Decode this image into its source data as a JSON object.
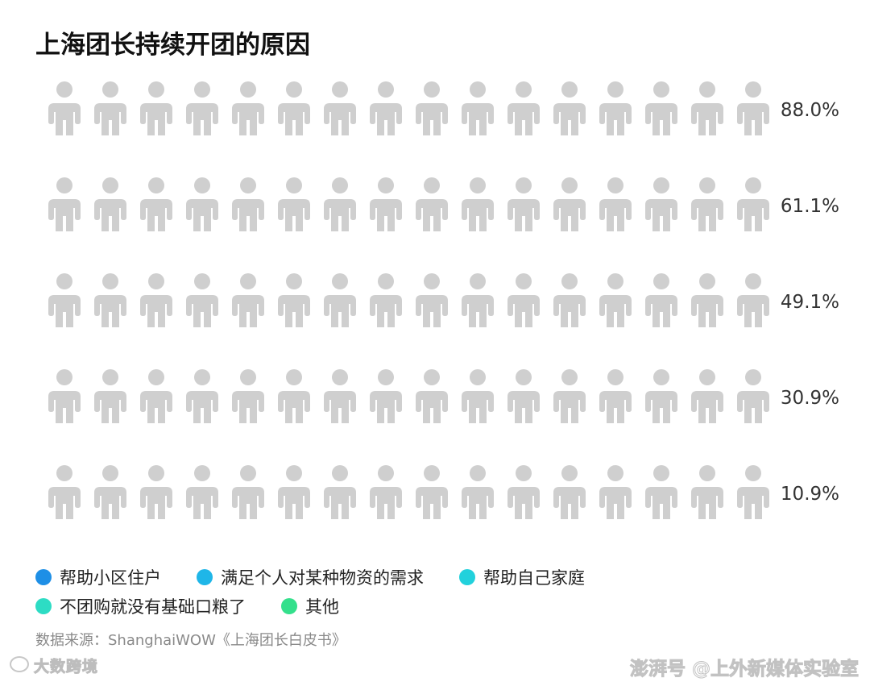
{
  "chart_data": {
    "type": "pictograph",
    "title": "上海团长持续开团的原因",
    "icons_per_row": 16,
    "unit": "%",
    "categories": [
      "帮助小区住户",
      "满足个人对某种物资的需求",
      "帮助自己家庭",
      "不团购就没有基础口粮了",
      "其他"
    ],
    "values": [
      88.0,
      61.1,
      49.1,
      30.9,
      10.9
    ],
    "value_labels": [
      "88.0%",
      "61.1%",
      "49.1%",
      "30.9%",
      "10.9%"
    ],
    "colors": [
      "#1e8fe6",
      "#1fb6e8",
      "#22d1dc",
      "#2ddcc4",
      "#34e08c"
    ],
    "empty_color": "#cfcfcf",
    "legend_position": "bottom",
    "grid": false
  },
  "legend": {
    "rows": [
      [
        {
          "label": "帮助小区住户",
          "color": "#1e8fe6"
        },
        {
          "label": "满足个人对某种物资的需求",
          "color": "#1fb6e8"
        },
        {
          "label": "帮助自己家庭",
          "color": "#22d1dc"
        }
      ],
      [
        {
          "label": "不团购就没有基础口粮了",
          "color": "#2ddcc4"
        },
        {
          "label": "其他",
          "color": "#34e08c"
        }
      ]
    ]
  },
  "source_text": "数据来源：ShanghaiWOW《上海团长白皮书》",
  "watermark": {
    "left": "大数跨境",
    "right": "澎湃号 @上外新媒体实验室"
  }
}
